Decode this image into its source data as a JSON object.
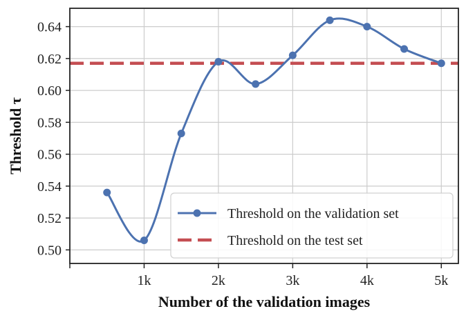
{
  "chart_data": {
    "type": "line",
    "xlabel": "Number of the validation images",
    "ylabel": "Threshold τ",
    "xlim": [
      0,
      5230
    ],
    "ylim": [
      0.4915,
      0.6515
    ],
    "x_ticks": [
      {
        "value": 0,
        "label": ""
      },
      {
        "value": 1000,
        "label": "1k"
      },
      {
        "value": 2000,
        "label": "2k"
      },
      {
        "value": 3000,
        "label": "3k"
      },
      {
        "value": 4000,
        "label": "4k"
      },
      {
        "value": 5000,
        "label": "5k"
      }
    ],
    "y_ticks": [
      {
        "value": 0.5,
        "label": "0.50"
      },
      {
        "value": 0.52,
        "label": "0.52"
      },
      {
        "value": 0.54,
        "label": "0.54"
      },
      {
        "value": 0.56,
        "label": "0.56"
      },
      {
        "value": 0.58,
        "label": "0.58"
      },
      {
        "value": 0.6,
        "label": "0.60"
      },
      {
        "value": 0.62,
        "label": "0.62"
      },
      {
        "value": 0.64,
        "label": "0.64"
      }
    ],
    "grid": true,
    "legend_position": "lower-right",
    "series": [
      {
        "name": "Threshold on the validation set",
        "style": "line-markers",
        "color": "#4c72b0",
        "x": [
          500,
          1000,
          1500,
          2000,
          2500,
          3000,
          3500,
          4000,
          4500,
          5000
        ],
        "y": [
          0.536,
          0.506,
          0.573,
          0.618,
          0.604,
          0.622,
          0.644,
          0.64,
          0.626,
          0.617
        ]
      },
      {
        "name": "Threshold on the test set",
        "style": "dashed-horizontal",
        "color": "#c44e52",
        "y": 0.617
      }
    ]
  }
}
